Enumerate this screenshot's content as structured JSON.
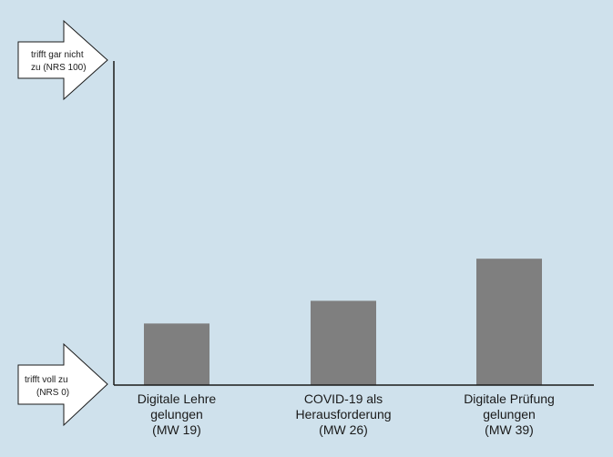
{
  "chart_data": {
    "type": "bar",
    "categories": [
      [
        "Digitale Lehre",
        "gelungen",
        "(MW 19)"
      ],
      [
        "COVID-19 als",
        "Herausforderung",
        "(MW 26)"
      ],
      [
        "Digitale Prüfung",
        "gelungen",
        "(MW 39)"
      ]
    ],
    "values": [
      19,
      26,
      39
    ],
    "ylim": [
      0,
      100
    ],
    "top_arrow_label": [
      "trifft gar nicht",
      "zu (NRS 100)"
    ],
    "bottom_arrow_label": [
      "trifft voll zu",
      "(NRS 0)"
    ],
    "colors": {
      "background": "#cfe1ec",
      "bar": "#7f7f7f",
      "axis": "#1a1a1a",
      "arrow_fill": "#ffffff"
    },
    "grid": false,
    "legend": "none"
  }
}
